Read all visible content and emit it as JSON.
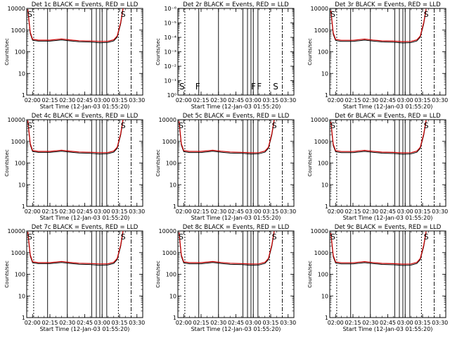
{
  "figure": {
    "xlabel": "Start Time (12-Jan-03 01:55:20)",
    "ylabel": "Counts/sec",
    "xtick_labels": [
      "02:00",
      "02:15",
      "02:30",
      "02:45",
      "03:00",
      "03:15",
      "03:30"
    ],
    "ytick_labels_standard": [
      "1",
      "10",
      "100",
      "1000",
      "10000"
    ],
    "ytick_labels_2r": [
      "10⁰",
      "10⁻¹",
      "10⁻²",
      "10⁻³",
      "10⁻⁴",
      "10⁻⁵",
      "10⁻⁶"
    ],
    "annotation_s": "S",
    "annotation_f": "F"
  },
  "chart_data": [
    {
      "type": "line",
      "title": "Det 1c BLACK = Events, RED = LLD",
      "xlabel": "Start Time (12-Jan-03 01:55:20)",
      "ylabel": "Counts/sec",
      "yscale": "log",
      "ylim": [
        1,
        10000
      ],
      "xlim": [
        "01:55",
        "03:35"
      ],
      "series": [
        {
          "name": "BLACK = Events",
          "color": "#000000",
          "x": [
            "01:56",
            "01:58",
            "02:00",
            "02:05",
            "02:15",
            "02:25",
            "02:32",
            "02:40",
            "02:50",
            "02:58",
            "03:05",
            "03:10",
            "03:13",
            "03:16",
            "03:18"
          ],
          "values": [
            8000,
            700,
            340,
            310,
            310,
            350,
            320,
            290,
            280,
            260,
            270,
            320,
            480,
            2000,
            9000
          ]
        },
        {
          "name": "RED = LLD",
          "color": "#cc0000",
          "x": [
            "01:56",
            "01:58",
            "02:00",
            "02:05",
            "02:15",
            "02:25",
            "02:32",
            "02:40",
            "02:50",
            "02:58",
            "03:05",
            "03:10",
            "03:13",
            "03:16",
            "03:18"
          ],
          "values": [
            9000,
            800,
            380,
            345,
            345,
            390,
            355,
            325,
            315,
            300,
            305,
            360,
            540,
            2300,
            10000
          ]
        }
      ]
    },
    {
      "type": "line",
      "title": "Det 2r BLACK = Events, RED = LLD",
      "xlabel": "Start Time (12-Jan-03 01:55:20)",
      "ylabel": "Counts/sec",
      "yscale": "log",
      "ylim": [
        1e-06,
        1
      ],
      "xlim": [
        "01:55",
        "03:35"
      ],
      "series": []
    },
    {
      "type": "line",
      "title": "Det 3r BLACK = Events, RED = LLD",
      "xlabel": "Start Time (12-Jan-03 01:55:20)",
      "ylabel": "Counts/sec",
      "yscale": "log",
      "ylim": [
        1,
        10000
      ],
      "xlim": [
        "01:55",
        "03:35"
      ],
      "series": [
        {
          "name": "BLACK = Events",
          "color": "#000000",
          "x": [
            "01:56",
            "01:58",
            "02:00",
            "02:05",
            "02:15",
            "02:25",
            "02:32",
            "02:40",
            "02:50",
            "02:58",
            "03:05",
            "03:10",
            "03:13",
            "03:16",
            "03:18"
          ],
          "values": [
            7000,
            650,
            330,
            300,
            300,
            345,
            315,
            285,
            275,
            255,
            265,
            315,
            470,
            1900,
            8500
          ]
        },
        {
          "name": "RED = LLD",
          "color": "#cc0000",
          "x": [
            "01:56",
            "01:58",
            "02:00",
            "02:05",
            "02:15",
            "02:25",
            "02:32",
            "02:40",
            "02:50",
            "02:58",
            "03:05",
            "03:10",
            "03:13",
            "03:16",
            "03:18"
          ],
          "values": [
            8000,
            750,
            370,
            340,
            340,
            385,
            350,
            320,
            310,
            295,
            300,
            355,
            530,
            2200,
            9500
          ]
        }
      ]
    },
    {
      "type": "line",
      "title": "Det 4c BLACK = Events, RED = LLD",
      "xlabel": "Start Time (12-Jan-03 01:55:20)",
      "ylabel": "Counts/sec",
      "yscale": "log",
      "ylim": [
        1,
        10000
      ],
      "xlim": [
        "01:55",
        "03:35"
      ],
      "series": [
        {
          "name": "BLACK = Events",
          "color": "#000000",
          "x": [
            "01:56",
            "01:58",
            "02:00",
            "02:05",
            "02:15",
            "02:25",
            "02:32",
            "02:40",
            "02:50",
            "02:58",
            "03:05",
            "03:10",
            "03:13",
            "03:16",
            "03:18"
          ],
          "values": [
            8000,
            700,
            340,
            310,
            310,
            350,
            320,
            290,
            280,
            260,
            270,
            320,
            480,
            2000,
            9000
          ]
        },
        {
          "name": "RED = LLD",
          "color": "#cc0000",
          "x": [
            "01:56",
            "01:58",
            "02:00",
            "02:05",
            "02:15",
            "02:25",
            "02:32",
            "02:40",
            "02:50",
            "02:58",
            "03:05",
            "03:10",
            "03:13",
            "03:16",
            "03:18"
          ],
          "values": [
            9000,
            800,
            380,
            345,
            345,
            390,
            355,
            325,
            315,
            300,
            305,
            360,
            540,
            2300,
            10000
          ]
        }
      ]
    },
    {
      "type": "line",
      "title": "Det 5c BLACK = Events, RED = LLD",
      "xlabel": "Start Time (12-Jan-03 01:55:20)",
      "ylabel": "Counts/sec",
      "yscale": "log",
      "ylim": [
        1,
        10000
      ],
      "xlim": [
        "01:55",
        "03:35"
      ],
      "series": [
        {
          "name": "BLACK = Events",
          "color": "#000000",
          "x": [
            "01:56",
            "01:58",
            "02:00",
            "02:05",
            "02:15",
            "02:25",
            "02:32",
            "02:40",
            "02:50",
            "02:58",
            "03:05",
            "03:10",
            "03:13",
            "03:16",
            "03:18"
          ],
          "values": [
            7500,
            680,
            335,
            305,
            305,
            348,
            318,
            288,
            278,
            258,
            268,
            318,
            475,
            1950,
            8800
          ]
        },
        {
          "name": "RED = LLD",
          "color": "#cc0000",
          "x": [
            "01:56",
            "01:58",
            "02:00",
            "02:05",
            "02:15",
            "02:25",
            "02:32",
            "02:40",
            "02:50",
            "02:58",
            "03:05",
            "03:10",
            "03:13",
            "03:16",
            "03:18"
          ],
          "values": [
            8500,
            780,
            375,
            343,
            343,
            388,
            353,
            323,
            313,
            298,
            303,
            358,
            535,
            2250,
            9800
          ]
        }
      ]
    },
    {
      "type": "line",
      "title": "Det 6r BLACK = Events, RED = LLD",
      "xlabel": "Start Time (12-Jan-03 01:55:20)",
      "ylabel": "Counts/sec",
      "yscale": "log",
      "ylim": [
        1,
        10000
      ],
      "xlim": [
        "01:55",
        "03:35"
      ],
      "series": [
        {
          "name": "BLACK = Events",
          "color": "#000000",
          "x": [
            "01:56",
            "01:58",
            "02:00",
            "02:05",
            "02:15",
            "02:25",
            "02:32",
            "02:40",
            "02:50",
            "02:58",
            "03:05",
            "03:10",
            "03:13",
            "03:16",
            "03:18"
          ],
          "values": [
            7000,
            650,
            330,
            300,
            300,
            345,
            315,
            285,
            275,
            255,
            265,
            315,
            470,
            1900,
            8500
          ]
        },
        {
          "name": "RED = LLD",
          "color": "#cc0000",
          "x": [
            "01:56",
            "01:58",
            "02:00",
            "02:05",
            "02:15",
            "02:25",
            "02:32",
            "02:40",
            "02:50",
            "02:58",
            "03:05",
            "03:10",
            "03:13",
            "03:16",
            "03:18"
          ],
          "values": [
            8000,
            750,
            370,
            340,
            340,
            385,
            350,
            320,
            310,
            295,
            300,
            355,
            530,
            2200,
            9500
          ]
        }
      ]
    },
    {
      "type": "line",
      "title": "Det 7c BLACK = Events, RED = LLD",
      "xlabel": "Start Time (12-Jan-03 01:55:20)",
      "ylabel": "Counts/sec",
      "yscale": "log",
      "ylim": [
        1,
        10000
      ],
      "xlim": [
        "01:55",
        "03:35"
      ],
      "series": [
        {
          "name": "BLACK = Events",
          "color": "#000000",
          "x": [
            "01:56",
            "01:58",
            "02:00",
            "02:05",
            "02:15",
            "02:25",
            "02:32",
            "02:40",
            "02:50",
            "02:58",
            "03:05",
            "03:10",
            "03:13",
            "03:16",
            "03:18"
          ],
          "values": [
            8000,
            700,
            340,
            310,
            310,
            350,
            320,
            290,
            280,
            260,
            270,
            320,
            480,
            2000,
            9000
          ]
        },
        {
          "name": "RED = LLD",
          "color": "#cc0000",
          "x": [
            "01:56",
            "01:58",
            "02:00",
            "02:05",
            "02:15",
            "02:25",
            "02:32",
            "02:40",
            "02:50",
            "02:58",
            "03:05",
            "03:10",
            "03:13",
            "03:16",
            "03:18"
          ],
          "values": [
            9000,
            800,
            380,
            345,
            345,
            390,
            355,
            325,
            315,
            300,
            305,
            360,
            540,
            2300,
            10000
          ]
        }
      ]
    },
    {
      "type": "line",
      "title": "Det 8c BLACK = Events, RED = LLD",
      "xlabel": "Start Time (12-Jan-03 01:55:20)",
      "ylabel": "Counts/sec",
      "yscale": "log",
      "ylim": [
        1,
        10000
      ],
      "xlim": [
        "01:55",
        "03:35"
      ],
      "series": [
        {
          "name": "BLACK = Events",
          "color": "#000000",
          "x": [
            "01:56",
            "01:58",
            "02:00",
            "02:05",
            "02:15",
            "02:25",
            "02:32",
            "02:40",
            "02:50",
            "02:58",
            "03:05",
            "03:10",
            "03:13",
            "03:16",
            "03:18"
          ],
          "values": [
            7500,
            680,
            335,
            305,
            305,
            348,
            318,
            288,
            278,
            258,
            268,
            318,
            475,
            1950,
            8800
          ]
        },
        {
          "name": "RED = LLD",
          "color": "#cc0000",
          "x": [
            "01:56",
            "01:58",
            "02:00",
            "02:05",
            "02:15",
            "02:25",
            "02:32",
            "02:40",
            "02:50",
            "02:58",
            "03:05",
            "03:10",
            "03:13",
            "03:16",
            "03:18"
          ],
          "values": [
            8500,
            780,
            375,
            343,
            343,
            388,
            353,
            323,
            313,
            298,
            303,
            358,
            535,
            2250,
            9800
          ]
        }
      ]
    },
    {
      "type": "line",
      "title": "Det 9c BLACK = Events, RED = LLD",
      "xlabel": "Start Time (12-Jan-03 01:55:20)",
      "ylabel": "Counts/sec",
      "yscale": "log",
      "ylim": [
        1,
        10000
      ],
      "xlim": [
        "01:55",
        "03:35"
      ],
      "series": [
        {
          "name": "BLACK = Events",
          "color": "#000000",
          "x": [
            "01:56",
            "01:58",
            "02:00",
            "02:05",
            "02:15",
            "02:25",
            "02:32",
            "02:40",
            "02:50",
            "02:58",
            "03:05",
            "03:10",
            "03:13",
            "03:16",
            "03:18"
          ],
          "values": [
            7000,
            650,
            330,
            300,
            300,
            345,
            315,
            285,
            275,
            255,
            265,
            315,
            470,
            1900,
            8500
          ]
        },
        {
          "name": "RED = LLD",
          "color": "#cc0000",
          "x": [
            "01:56",
            "01:58",
            "02:00",
            "02:05",
            "02:15",
            "02:25",
            "02:32",
            "02:40",
            "02:50",
            "02:58",
            "03:05",
            "03:10",
            "03:13",
            "03:16",
            "03:18"
          ],
          "values": [
            8000,
            750,
            370,
            340,
            340,
            385,
            350,
            320,
            310,
            295,
            300,
            355,
            530,
            2200,
            9500
          ]
        }
      ]
    }
  ]
}
